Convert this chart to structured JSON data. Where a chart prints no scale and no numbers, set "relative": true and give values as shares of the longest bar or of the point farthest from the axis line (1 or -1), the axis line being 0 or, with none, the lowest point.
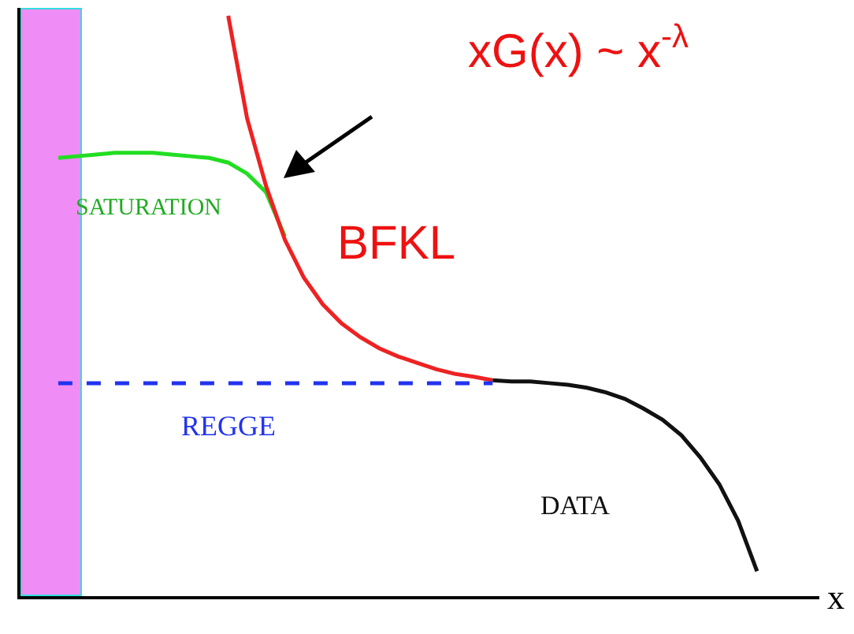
{
  "chart_data": {
    "type": "line",
    "relative": true,
    "xlabel": "x",
    "marker": "none",
    "categories": [
      null,
      null,
      null,
      null,
      null,
      null,
      null,
      null,
      null,
      null,
      null,
      null,
      null,
      null,
      null,
      null,
      null,
      null,
      null,
      null,
      null,
      null,
      null,
      null,
      null,
      null,
      null,
      null,
      null,
      null,
      null,
      null,
      null,
      null,
      null,
      null,
      null,
      null,
      null,
      null,
      null,
      null
    ],
    "series": [
      {
        "color": "#22dd22",
        "values": [
          null,
          0.755,
          0.758,
          0.761,
          0.764,
          0.764,
          0.764,
          0.761,
          0.758,
          0.755,
          0.747,
          0.728,
          0.696,
          0.62,
          null,
          null,
          null,
          null,
          null,
          null,
          null,
          null,
          null,
          null,
          null,
          null,
          null,
          null,
          null,
          null,
          null,
          null,
          null,
          null,
          null,
          null,
          null,
          null,
          null,
          null,
          null,
          null
        ]
      },
      {
        "color": "#ee2222",
        "values": [
          null,
          null,
          null,
          null,
          null,
          null,
          null,
          null,
          null,
          null,
          1,
          0.823,
          0.707,
          0.614,
          0.549,
          0.503,
          0.47,
          0.446,
          0.427,
          0.413,
          0.402,
          0.391,
          0.383,
          0.378,
          0.372,
          null,
          null,
          null,
          null,
          null,
          null,
          null,
          null,
          null,
          null,
          null,
          null,
          null,
          null,
          null,
          null,
          null
        ]
      },
      {
        "color": "#111111",
        "values": [
          null,
          null,
          null,
          null,
          null,
          null,
          null,
          null,
          null,
          null,
          null,
          null,
          null,
          null,
          null,
          null,
          null,
          null,
          null,
          null,
          null,
          null,
          null,
          null,
          0.372,
          0.37,
          0.37,
          0.367,
          0.364,
          0.359,
          0.351,
          0.34,
          0.323,
          0.304,
          0.277,
          0.239,
          0.193,
          0.13,
          0.043,
          null,
          null,
          null
        ]
      },
      {
        "color": "#2233ee",
        "line_style": "dashed",
        "values": [
          null,
          0.367,
          0.367,
          0.367,
          0.367,
          0.367,
          0.367,
          0.367,
          0.367,
          0.367,
          0.367,
          0.367,
          0.367,
          0.367,
          0.367,
          0.367,
          0.367,
          0.367,
          0.367,
          0.367,
          0.367,
          0.367,
          0.367,
          0.367,
          0.367,
          null,
          null,
          null,
          null,
          null,
          null,
          null,
          null,
          null,
          null,
          null,
          null,
          null,
          null,
          null,
          null,
          null
        ]
      }
    ],
    "annotations": [
      "xG(x) ~ x$^{-λ}$",
      "SATURATION",
      "BFKL",
      "REGGE",
      "DATA"
    ]
  }
}
